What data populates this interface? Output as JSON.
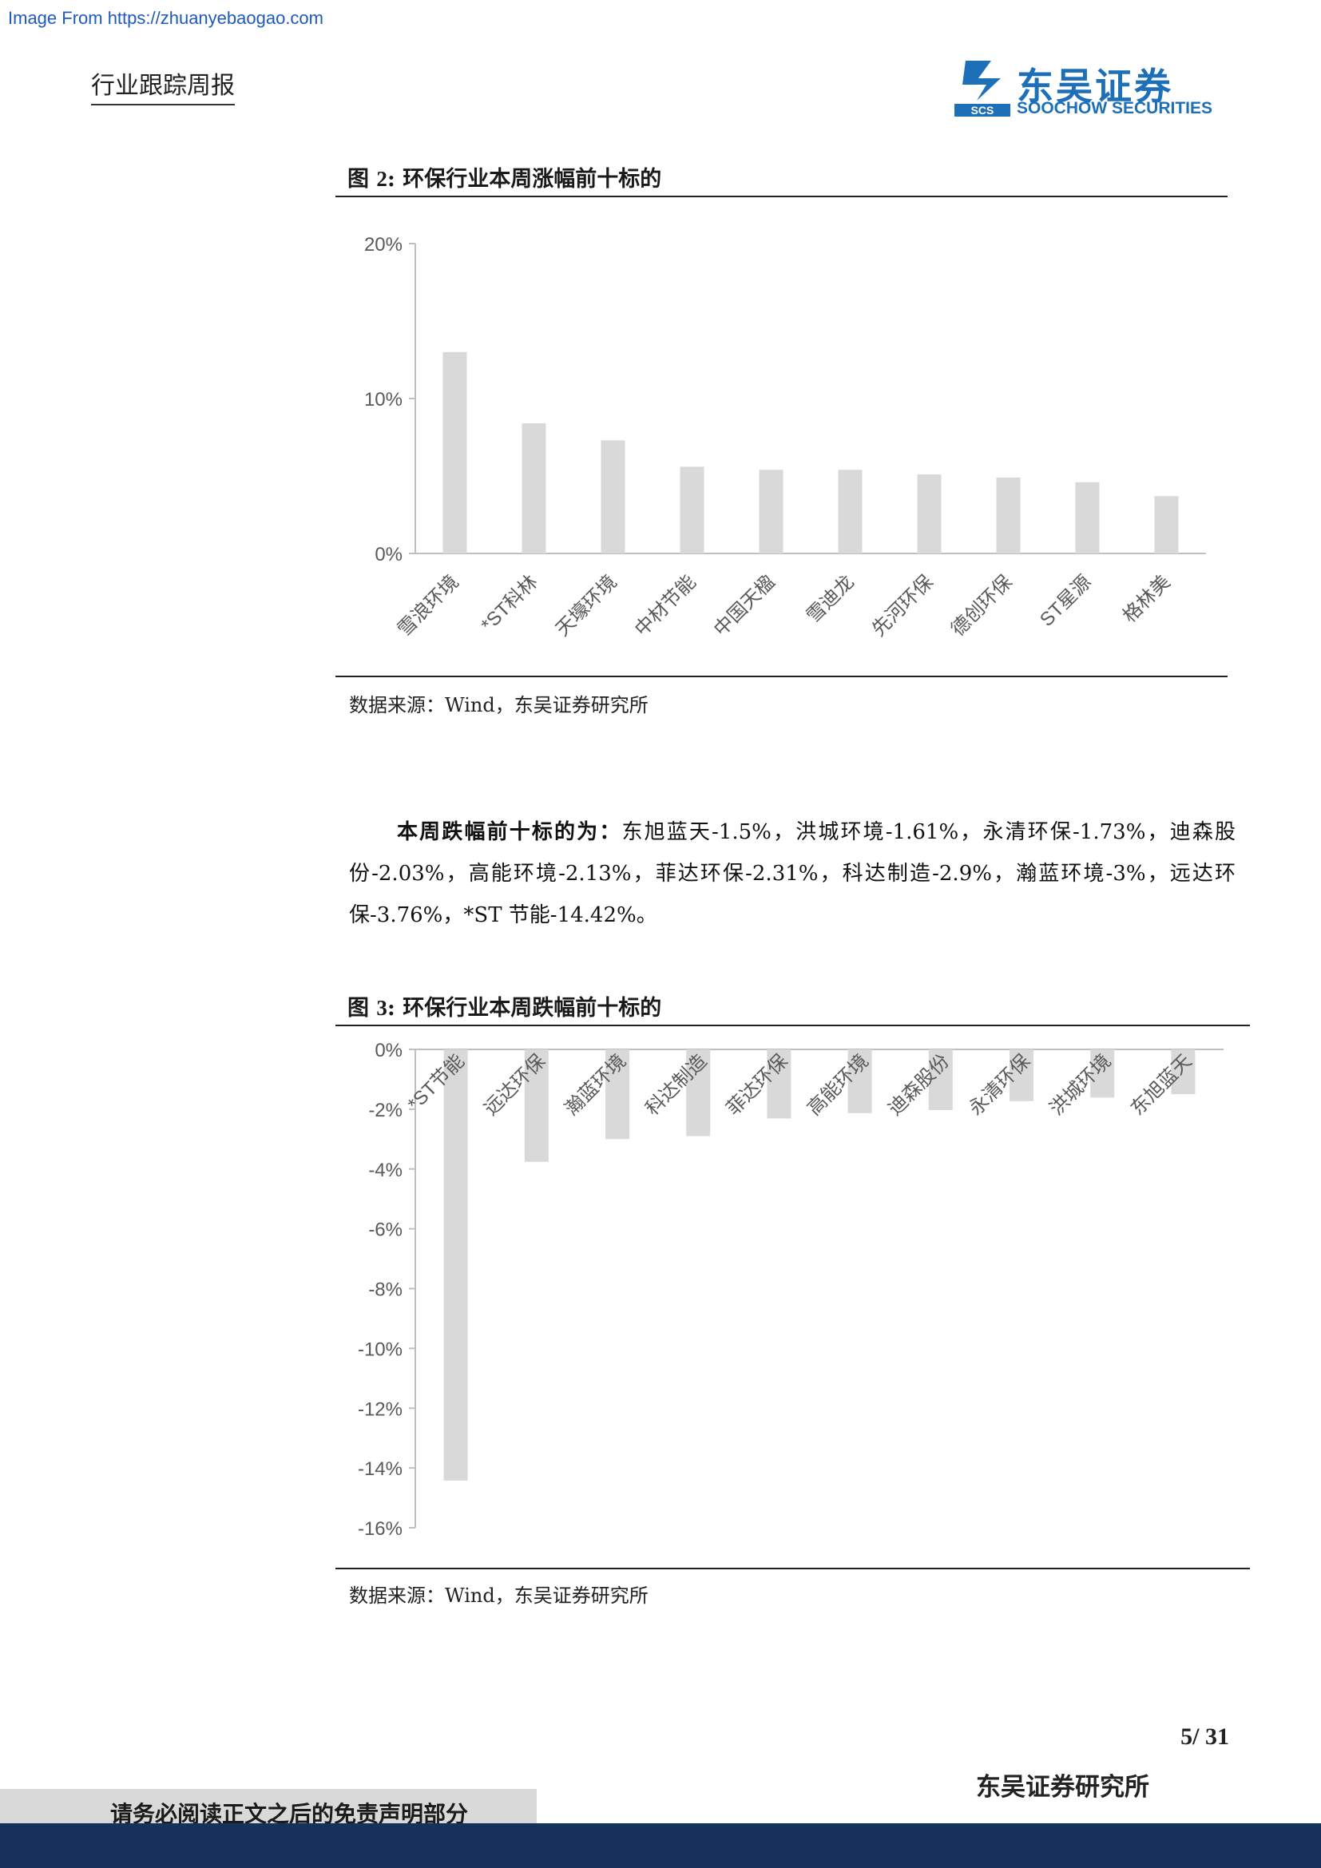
{
  "watermark": "Image From https://zhuanyebaogao.com",
  "header": {
    "report_type": "行业跟踪周报",
    "logo_cn": "东吴证券",
    "logo_en": "SOOCHOW SECURITIES",
    "logo_mark": "SCS",
    "brand_color": "#1d6fb8"
  },
  "figure2": {
    "title_prefix": "图 ",
    "title_num": "2",
    "title_text": ":  环保行业本周涨幅前十标的",
    "source": "数据来源：Wind，东吴证券研究所"
  },
  "figure3": {
    "title_prefix": "图 ",
    "title_num": "3",
    "title_text": ":  环保行业本周跌幅前十标的",
    "source": "数据来源：Wind，东吴证券研究所"
  },
  "paragraph": {
    "lead": "本周跌幅前十标的为：",
    "body": "东旭蓝天-1.5%，洪城环境-1.61%，永清环保-1.73%，迪森股份-2.03%，高能环境-2.13%，菲达环保-2.31%，科达制造-2.9%，瀚蓝环境-3%，远达环保-3.76%，*ST 节能-14.42%。"
  },
  "chart_data": [
    {
      "type": "bar",
      "categories": [
        "雪浪环境",
        "*ST科林",
        "天壕环境",
        "中材节能",
        "中国天楹",
        "雪迪龙",
        "先河环保",
        "德创环保",
        "ST星源",
        "格林美"
      ],
      "values": [
        13.0,
        8.4,
        7.3,
        5.6,
        5.4,
        5.4,
        5.1,
        4.9,
        4.6,
        3.7
      ],
      "yticks": [
        "20%",
        "10%",
        "0%"
      ],
      "ylim": [
        0,
        20
      ],
      "bar_color": "#d9d9d9",
      "grid": false
    },
    {
      "type": "bar",
      "categories": [
        "*ST节能",
        "远达环保",
        "瀚蓝环境",
        "科达制造",
        "菲达环保",
        "高能环境",
        "迪森股份",
        "永清环保",
        "洪城环境",
        "东旭蓝天"
      ],
      "values": [
        -14.42,
        -3.76,
        -3.0,
        -2.9,
        -2.31,
        -2.13,
        -2.03,
        -1.73,
        -1.61,
        -1.5
      ],
      "yticks": [
        "0%",
        "-2%",
        "-4%",
        "-6%",
        "-8%",
        "-10%",
        "-12%",
        "-14%",
        "-16%"
      ],
      "ylim": [
        -16,
        0
      ],
      "bar_color": "#d9d9d9",
      "grid": false
    }
  ],
  "footer": {
    "page_num": "5/ 31",
    "institute": "东吴证券研究所",
    "disclaimer": "请务必阅读正文之后的免责声明部分",
    "bar_color": "#16325c"
  }
}
